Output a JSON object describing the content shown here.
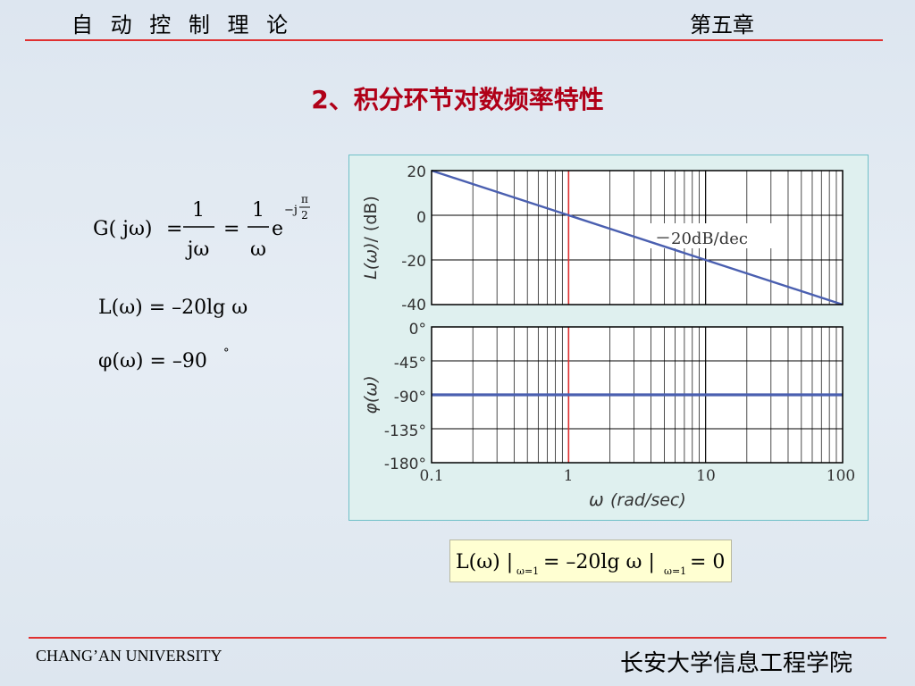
{
  "header": {
    "course": "自 动 控 制 理 论",
    "chapter": "第五章"
  },
  "slide_title": "2、积分环节对数频率特性",
  "formulas": {
    "transfer": {
      "lhs": "G( jω)",
      "eq": "=",
      "num1": "1",
      "den1": "jω",
      "num2": "1",
      "den2": "ω",
      "base": "e",
      "exp_prefix": "−j",
      "exp_num": "π",
      "exp_den": "2"
    },
    "magnitude": "L(ω) = –20lg ω",
    "phase_main": "φ(ω) = –90",
    "phase_deg": "°",
    "result": {
      "lhs": "L(ω) |",
      "sub1": "ω=1",
      "mid": "= –20lg ω |",
      "sub2": "ω=1",
      "rhs": "= 0"
    }
  },
  "chart_data": [
    {
      "type": "line",
      "x_scale": "log",
      "xlim": [
        0.1,
        100
      ],
      "ylim": [
        -40,
        20
      ],
      "yticks": [
        "20",
        "0",
        "-20",
        "-40"
      ],
      "ylabel_main": "L(ω)",
      "ylabel_unit": "/ (dB)",
      "annotation": "－20dB/dec",
      "marker_x": 1,
      "series": [
        {
          "x": [
            0.1,
            100
          ],
          "y": [
            20,
            -40
          ]
        }
      ],
      "colors": {
        "line": "#4a5fb0",
        "marker": "#e03030",
        "grid": "#000000"
      }
    },
    {
      "type": "line",
      "x_scale": "log",
      "xlim": [
        0.1,
        100
      ],
      "ylim": [
        -180,
        0
      ],
      "yticks": [
        "0°",
        "-45°",
        "-90°",
        "-135°",
        "-180°"
      ],
      "ylabel": "φ(ω)",
      "marker_x": 1,
      "series": [
        {
          "x": [
            0.1,
            100
          ],
          "y": [
            -90,
            -90
          ]
        }
      ],
      "xticks": [
        "0.1",
        "1",
        "10",
        "100"
      ],
      "xlabel_main": "ω",
      "xlabel_unit": "(rad/sec)",
      "colors": {
        "line": "#4a5fb0",
        "marker": "#e03030",
        "grid": "#000000"
      }
    }
  ],
  "footer": {
    "university": "CHANG’AN UNIVERSITY",
    "institute": "长安大学信息工程学院"
  }
}
